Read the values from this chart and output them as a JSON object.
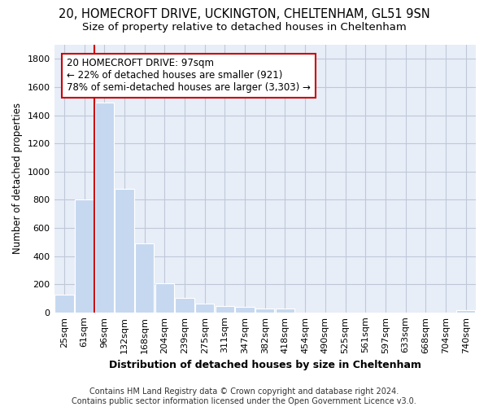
{
  "title1": "20, HOMECROFT DRIVE, UCKINGTON, CHELTENHAM, GL51 9SN",
  "title2": "Size of property relative to detached houses in Cheltenham",
  "xlabel": "Distribution of detached houses by size in Cheltenham",
  "ylabel": "Number of detached properties",
  "categories": [
    "25sqm",
    "61sqm",
    "96sqm",
    "132sqm",
    "168sqm",
    "204sqm",
    "239sqm",
    "275sqm",
    "311sqm",
    "347sqm",
    "382sqm",
    "418sqm",
    "454sqm",
    "490sqm",
    "525sqm",
    "561sqm",
    "597sqm",
    "633sqm",
    "668sqm",
    "704sqm",
    "740sqm"
  ],
  "values": [
    125,
    800,
    1490,
    880,
    490,
    205,
    105,
    65,
    45,
    38,
    30,
    25,
    0,
    0,
    0,
    0,
    0,
    0,
    0,
    0,
    15
  ],
  "bar_color": "#c5d8f0",
  "vline_color": "#cc0000",
  "annotation_line1": "20 HOMECROFT DRIVE: 97sqm",
  "annotation_line2": "← 22% of detached houses are smaller (921)",
  "annotation_line3": "78% of semi-detached houses are larger (3,303) →",
  "annotation_box_color": "#ffffff",
  "annotation_box_edge_color": "#cc0000",
  "ylim": [
    0,
    1900
  ],
  "yticks": [
    0,
    200,
    400,
    600,
    800,
    1000,
    1200,
    1400,
    1600,
    1800
  ],
  "footnote": "Contains HM Land Registry data © Crown copyright and database right 2024.\nContains public sector information licensed under the Open Government Licence v3.0.",
  "background_color": "#e8eef8",
  "grid_color": "#c0c8d8",
  "title1_fontsize": 10.5,
  "title2_fontsize": 9.5,
  "xlabel_fontsize": 9,
  "ylabel_fontsize": 8.5,
  "tick_fontsize": 8,
  "annotation_fontsize": 8.5,
  "footnote_fontsize": 7
}
